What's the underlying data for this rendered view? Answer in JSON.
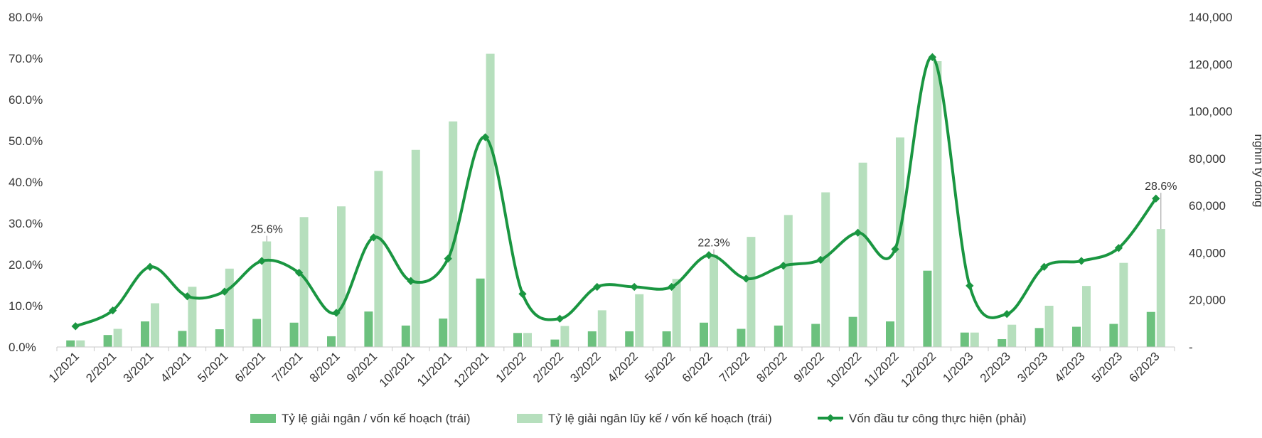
{
  "chart_data": {
    "type": "bar+line",
    "categories": [
      "1/2021",
      "2/2021",
      "3/2021",
      "4/2021",
      "5/2021",
      "6/2021",
      "7/2021",
      "8/2021",
      "9/2021",
      "10/2021",
      "11/2021",
      "12/2021",
      "1/2022",
      "2/2022",
      "3/2022",
      "4/2022",
      "5/2022",
      "6/2022",
      "7/2022",
      "8/2022",
      "9/2022",
      "10/2022",
      "11/2022",
      "12/2022",
      "1/2023",
      "2/2023",
      "3/2023",
      "4/2023",
      "5/2023",
      "6/2023"
    ],
    "series": [
      {
        "name": "Tỷ lệ giải ngân / vốn kế hoạch (trái)",
        "type": "bar",
        "axis": "left",
        "color": "#6cc17e",
        "values": [
          1.6,
          2.9,
          6.2,
          3.9,
          4.3,
          6.8,
          5.9,
          2.6,
          8.6,
          5.2,
          6.9,
          16.6,
          3.4,
          1.8,
          3.8,
          3.8,
          3.8,
          5.9,
          4.4,
          5.2,
          5.6,
          7.3,
          6.2,
          18.5,
          3.5,
          1.9,
          4.6,
          4.9,
          5.6,
          8.5
        ]
      },
      {
        "name": "Tỷ lệ giải ngân lũy kế / vốn kế hoạch (trái)",
        "type": "bar",
        "axis": "left",
        "color": "#b6dfbd",
        "values": [
          1.6,
          4.4,
          10.6,
          14.6,
          19.0,
          25.6,
          31.5,
          34.1,
          42.7,
          47.8,
          54.7,
          71.1,
          3.4,
          5.1,
          8.9,
          12.8,
          16.5,
          22.3,
          26.7,
          32.0,
          37.5,
          44.7,
          50.8,
          69.3,
          3.5,
          5.4,
          10.0,
          14.8,
          20.4,
          28.6
        ]
      },
      {
        "name": "Vốn đầu tư công thực hiện (phải)",
        "type": "line",
        "axis": "right",
        "color": "#1a9641",
        "values": [
          8800,
          15500,
          34000,
          21500,
          23500,
          36500,
          31500,
          14500,
          46500,
          28000,
          37500,
          89000,
          22500,
          12000,
          25500,
          25500,
          25500,
          39000,
          29000,
          34500,
          37000,
          48500,
          41500,
          123000,
          26000,
          14000,
          34000,
          36500,
          42000,
          63000
        ]
      }
    ],
    "y_left": {
      "ticks": [
        "0.0%",
        "10.0%",
        "20.0%",
        "30.0%",
        "40.0%",
        "50.0%",
        "60.0%",
        "70.0%",
        "80.0%"
      ],
      "ylim": [
        0,
        80
      ]
    },
    "y_right": {
      "ticks": [
        "-",
        "20,000",
        "40,000",
        "60,000",
        "80,000",
        "100,000",
        "120,000",
        "140,000"
      ],
      "ylim": [
        0,
        140000
      ],
      "label": "nghìn tỷ đồng"
    },
    "annotations": [
      {
        "category": "6/2021",
        "text": "25.6%"
      },
      {
        "category": "6/2022",
        "text": "22.3%"
      },
      {
        "category": "6/2023",
        "text": "28.6%"
      }
    ],
    "grid": false,
    "legend": "bottom"
  }
}
